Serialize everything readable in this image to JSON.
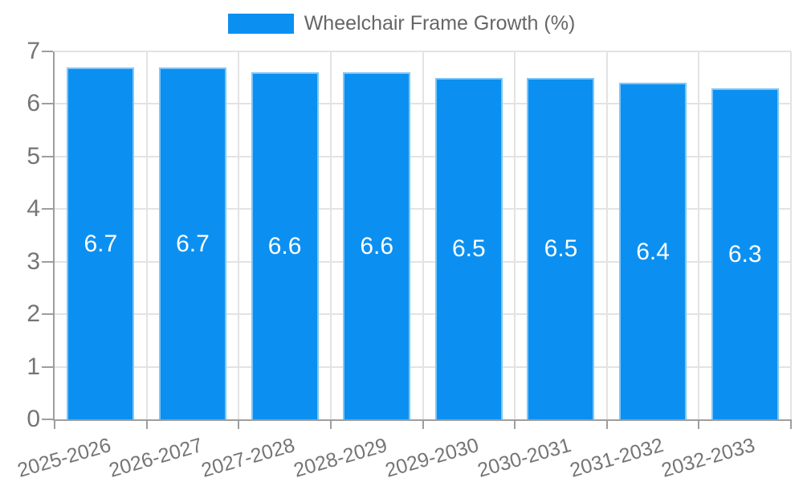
{
  "chart_data": {
    "type": "bar",
    "title": "Wheelchair Frame Growth (%)",
    "legend_position": "top",
    "categories": [
      "2025-2026",
      "2026-2027",
      "2027-2028",
      "2028-2029",
      "2029-2030",
      "2030-2031",
      "2031-2032",
      "2032-2033"
    ],
    "series": [
      {
        "name": "Wheelchair Frame Growth (%)",
        "values": [
          6.7,
          6.7,
          6.6,
          6.6,
          6.5,
          6.5,
          6.4,
          6.3
        ],
        "value_labels": [
          "6.7",
          "6.7",
          "6.6",
          "6.6",
          "6.5",
          "6.5",
          "6.4",
          "6.3"
        ]
      }
    ],
    "xlabel": "",
    "ylabel": "",
    "ylim": [
      0,
      7
    ],
    "yticks": [
      0,
      1,
      2,
      3,
      4,
      5,
      6,
      7
    ],
    "grid": true,
    "colors": {
      "bar_fill": "#0b90f1",
      "bar_border": "#7ec6f9",
      "grid": "#e3e3e3",
      "axis": "#9e9e9e",
      "tick_label": "#757575",
      "legend_label": "#666666",
      "bar_value_label": "#ffffff"
    }
  }
}
